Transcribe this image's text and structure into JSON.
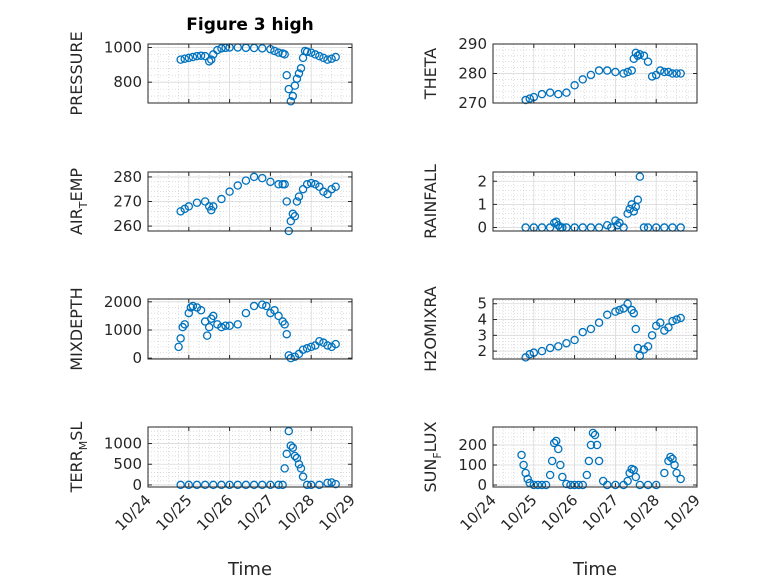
{
  "title": "Figure 3 high",
  "marker_color": "#0072BD",
  "x_ticks": [
    "10/24",
    "10/25",
    "10/26",
    "10/27",
    "10/28",
    "10/29"
  ],
  "x_label": "Time",
  "chart_data": [
    {
      "type": "scatter",
      "id": "pressure",
      "ylabel_main": "PRESSURE",
      "ylabel_sub": "",
      "ylabel_tail": "",
      "xlim": [
        24,
        29
      ],
      "ylim": [
        680,
        1020
      ],
      "yticks": [
        800,
        1000
      ],
      "grid": true,
      "x": [
        24.8,
        24.9,
        25.0,
        25.1,
        25.2,
        25.3,
        25.4,
        25.5,
        25.55,
        25.6,
        25.7,
        25.8,
        25.9,
        26.0,
        26.2,
        26.4,
        26.6,
        26.8,
        27.0,
        27.1,
        27.2,
        27.3,
        27.35,
        27.4,
        27.45,
        27.5,
        27.55,
        27.6,
        27.65,
        27.7,
        27.75,
        27.8,
        27.85,
        27.9,
        28.0,
        28.1,
        28.2,
        28.3,
        28.4,
        28.5,
        28.6
      ],
      "y": [
        930,
        935,
        940,
        945,
        950,
        952,
        950,
        920,
        930,
        960,
        985,
        995,
        998,
        1000,
        1000,
        998,
        997,
        995,
        990,
        980,
        970,
        965,
        960,
        840,
        760,
        690,
        720,
        780,
        820,
        850,
        880,
        940,
        980,
        975,
        970,
        960,
        950,
        940,
        930,
        935,
        945
      ]
    },
    {
      "type": "scatter",
      "id": "theta",
      "ylabel_main": "THETA",
      "ylabel_sub": "",
      "ylabel_tail": "",
      "xlim": [
        24,
        29
      ],
      "ylim": [
        270,
        290
      ],
      "yticks": [
        270,
        280,
        290
      ],
      "grid": true,
      "x": [
        24.8,
        24.9,
        25.0,
        25.2,
        25.4,
        25.6,
        25.8,
        26.0,
        26.2,
        26.4,
        26.6,
        26.8,
        27.0,
        27.2,
        27.3,
        27.4,
        27.45,
        27.5,
        27.55,
        27.6,
        27.7,
        27.8,
        27.9,
        28.0,
        28.1,
        28.2,
        28.3,
        28.4,
        28.5,
        28.6
      ],
      "y": [
        271,
        271.5,
        272,
        273,
        273.5,
        273,
        273.5,
        276,
        278,
        279.5,
        281,
        281,
        280.5,
        280,
        280.5,
        281,
        285,
        287,
        286,
        286.5,
        286,
        284,
        279,
        279.5,
        281,
        280.5,
        280.5,
        280,
        280,
        280
      ]
    },
    {
      "type": "scatter",
      "id": "air-temp",
      "ylabel_main": "AIR",
      "ylabel_sub": "T",
      "ylabel_tail": "EMP",
      "xlim": [
        24,
        29
      ],
      "ylim": [
        258,
        282
      ],
      "yticks": [
        260,
        270,
        280
      ],
      "grid": true,
      "x": [
        24.8,
        24.9,
        25.0,
        25.2,
        25.4,
        25.5,
        25.55,
        25.6,
        25.8,
        26.0,
        26.2,
        26.4,
        26.6,
        26.8,
        27.0,
        27.2,
        27.3,
        27.35,
        27.4,
        27.45,
        27.5,
        27.55,
        27.6,
        27.65,
        27.7,
        27.8,
        27.9,
        28.0,
        28.1,
        28.2,
        28.3,
        28.4,
        28.5,
        28.6
      ],
      "y": [
        266,
        267,
        268,
        269.5,
        270,
        268,
        266.5,
        268,
        271,
        274,
        276.5,
        278.5,
        280,
        279.5,
        278,
        277,
        277,
        277,
        270,
        258,
        262,
        265,
        264,
        270,
        272,
        275,
        277,
        277.5,
        277,
        276,
        274,
        273,
        275,
        276
      ]
    },
    {
      "type": "scatter",
      "id": "rainfall",
      "ylabel_main": "RAINFALL",
      "ylabel_sub": "",
      "ylabel_tail": "",
      "xlim": [
        24,
        29
      ],
      "ylim": [
        -0.15,
        2.4
      ],
      "yticks": [
        0,
        1,
        2
      ],
      "grid": true,
      "x": [
        24.8,
        25.0,
        25.2,
        25.4,
        25.5,
        25.55,
        25.6,
        25.65,
        25.7,
        25.8,
        26.0,
        26.2,
        26.4,
        26.6,
        26.8,
        26.9,
        27.0,
        27.05,
        27.1,
        27.2,
        27.3,
        27.35,
        27.4,
        27.45,
        27.5,
        27.55,
        27.6,
        27.7,
        27.8,
        28.0,
        28.2,
        28.4,
        28.6
      ],
      "y": [
        0,
        0,
        0,
        0,
        0.2,
        0.25,
        0.1,
        0,
        0,
        0,
        0,
        0,
        0,
        0,
        0.1,
        0,
        0.3,
        0.1,
        0.2,
        0,
        0.6,
        0.8,
        1.0,
        0.7,
        0.9,
        1.2,
        2.2,
        0,
        0,
        0,
        0,
        0,
        0
      ]
    },
    {
      "type": "scatter",
      "id": "mixdepth",
      "ylabel_main": "MIXDEPTH",
      "ylabel_sub": "",
      "ylabel_tail": "",
      "xlim": [
        24,
        29
      ],
      "ylim": [
        -30,
        2100
      ],
      "yticks": [
        0,
        1000,
        2000
      ],
      "grid": true,
      "x": [
        24.75,
        24.8,
        24.85,
        24.9,
        25.0,
        25.05,
        25.1,
        25.2,
        25.3,
        25.4,
        25.45,
        25.5,
        25.55,
        25.6,
        25.7,
        25.8,
        25.9,
        26.0,
        26.2,
        26.4,
        26.6,
        26.8,
        26.9,
        27.0,
        27.1,
        27.2,
        27.3,
        27.35,
        27.4,
        27.45,
        27.5,
        27.6,
        27.7,
        27.8,
        27.9,
        28.0,
        28.1,
        28.2,
        28.3,
        28.4,
        28.5,
        28.6
      ],
      "y": [
        400,
        700,
        1100,
        1200,
        1600,
        1800,
        1850,
        1800,
        1700,
        1300,
        800,
        1100,
        1400,
        1500,
        1200,
        1100,
        1150,
        1150,
        1200,
        1600,
        1850,
        1900,
        1850,
        1600,
        1700,
        1500,
        1300,
        1200,
        850,
        100,
        0,
        50,
        150,
        300,
        350,
        400,
        450,
        600,
        550,
        450,
        400,
        500
      ]
    },
    {
      "type": "scatter",
      "id": "h2omixra",
      "ylabel_main": "H2OMIXRA",
      "ylabel_sub": "",
      "ylabel_tail": "",
      "xlim": [
        24,
        29
      ],
      "ylim": [
        1.5,
        5.3
      ],
      "yticks": [
        2,
        3,
        4,
        5
      ],
      "grid": true,
      "x": [
        24.8,
        24.9,
        25.0,
        25.2,
        25.4,
        25.6,
        25.8,
        26.0,
        26.2,
        26.4,
        26.6,
        26.8,
        27.0,
        27.1,
        27.2,
        27.3,
        27.4,
        27.45,
        27.5,
        27.55,
        27.6,
        27.7,
        27.8,
        27.9,
        28.0,
        28.1,
        28.2,
        28.3,
        28.4,
        28.5,
        28.6
      ],
      "y": [
        1.6,
        1.8,
        1.9,
        2.0,
        2.2,
        2.3,
        2.5,
        2.7,
        3.2,
        3.4,
        3.8,
        4.3,
        4.5,
        4.6,
        4.7,
        5.0,
        4.6,
        4.4,
        3.4,
        2.2,
        1.7,
        2.1,
        2.3,
        3.0,
        3.6,
        3.8,
        3.3,
        3.5,
        3.9,
        4.0,
        4.1
      ]
    },
    {
      "type": "scatter",
      "id": "terrain-msl",
      "ylabel_main": "TERR",
      "ylabel_sub": "M",
      "ylabel_tail": "SL",
      "xlim": [
        24,
        29
      ],
      "ylim": [
        -50,
        1400
      ],
      "yticks": [
        0,
        500,
        1000
      ],
      "grid": true,
      "x": [
        24.8,
        25.0,
        25.2,
        25.4,
        25.6,
        25.8,
        26.0,
        26.2,
        26.4,
        26.6,
        26.8,
        27.0,
        27.2,
        27.3,
        27.35,
        27.4,
        27.45,
        27.5,
        27.55,
        27.6,
        27.65,
        27.7,
        27.75,
        27.8,
        27.9,
        28.0,
        28.2,
        28.4,
        28.5,
        28.6
      ],
      "y": [
        0,
        0,
        0,
        0,
        0,
        0,
        0,
        0,
        0,
        0,
        0,
        0,
        0,
        0,
        400,
        750,
        1300,
        950,
        900,
        700,
        650,
        500,
        400,
        200,
        0,
        0,
        0,
        50,
        60,
        20
      ]
    },
    {
      "type": "scatter",
      "id": "sun-flux",
      "ylabel_main": "SUN",
      "ylabel_sub": "F",
      "ylabel_tail": "LUX",
      "xlim": [
        24,
        29
      ],
      "ylim": [
        -10,
        290
      ],
      "yticks": [
        0,
        100,
        200
      ],
      "grid": true,
      "x": [
        24.7,
        24.75,
        24.8,
        24.85,
        24.9,
        25.0,
        25.1,
        25.2,
        25.3,
        25.4,
        25.45,
        25.5,
        25.55,
        25.6,
        25.65,
        25.7,
        25.8,
        25.9,
        26.0,
        26.1,
        26.2,
        26.3,
        26.35,
        26.4,
        26.45,
        26.5,
        26.55,
        26.6,
        26.7,
        26.8,
        27.0,
        27.2,
        27.3,
        27.35,
        27.4,
        27.45,
        27.5,
        27.6,
        27.8,
        28.0,
        28.2,
        28.3,
        28.35,
        28.4,
        28.45,
        28.5,
        28.6
      ],
      "y": [
        150,
        100,
        60,
        30,
        10,
        0,
        0,
        0,
        0,
        50,
        120,
        210,
        220,
        180,
        100,
        40,
        5,
        0,
        0,
        0,
        0,
        50,
        120,
        200,
        260,
        250,
        200,
        120,
        20,
        0,
        0,
        0,
        20,
        60,
        80,
        75,
        40,
        0,
        0,
        0,
        60,
        120,
        140,
        130,
        100,
        60,
        30
      ]
    }
  ]
}
